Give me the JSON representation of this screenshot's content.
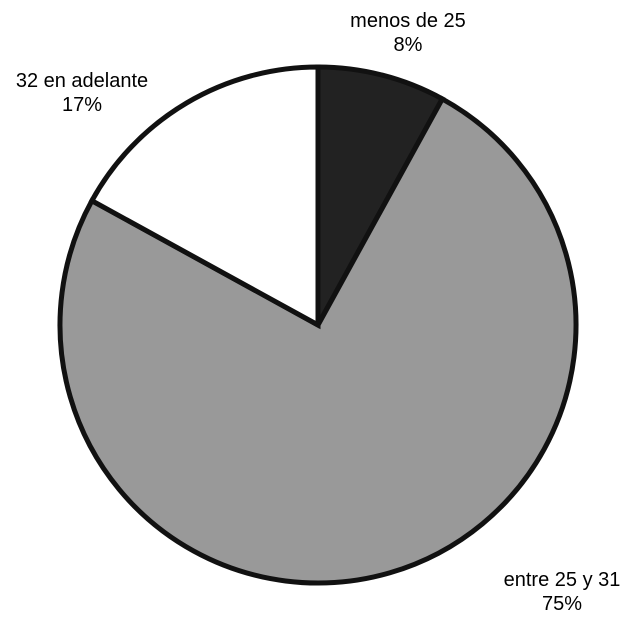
{
  "chart_data": {
    "type": "pie",
    "title": "",
    "start_angle_deg": 0,
    "direction": "clockwise",
    "slices": [
      {
        "label": "menos de 25",
        "value": 8,
        "percent_label": "8%",
        "color": "#222222"
      },
      {
        "label": "entre 25 y 31",
        "value": 75,
        "percent_label": "75%",
        "color": "#999999"
      },
      {
        "label": "32 en adelante",
        "value": 17,
        "percent_label": "17%",
        "color": "#ffffff"
      }
    ],
    "edge_color": "#111111",
    "legend": "none"
  }
}
